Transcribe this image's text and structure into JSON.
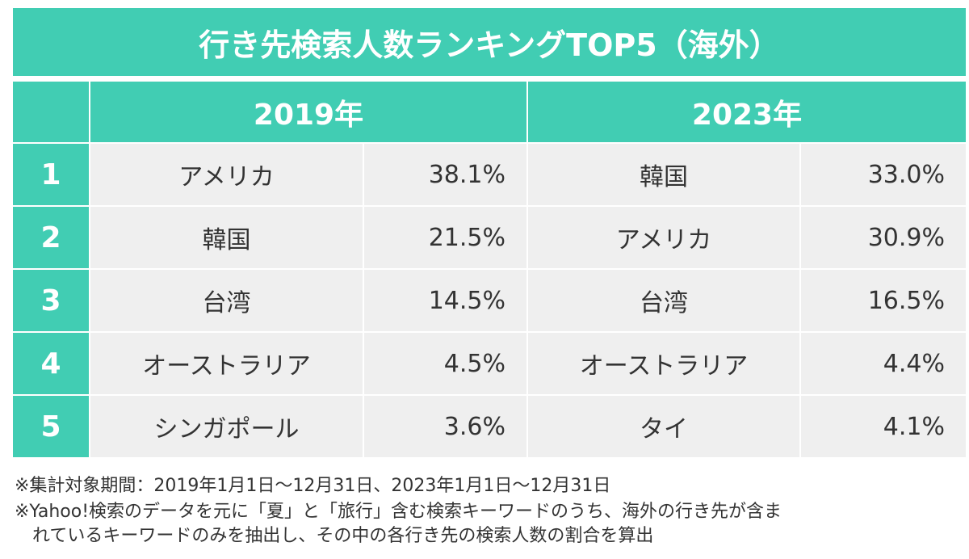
{
  "title": "行き先検索人数ランキングTOP5（海外）",
  "chart_data": {
    "type": "table",
    "title": "行き先検索人数ランキングTOP5（海外）",
    "years": [
      "2019年",
      "2023年"
    ],
    "ranks": [
      "1",
      "2",
      "3",
      "4",
      "5"
    ],
    "rows": [
      {
        "rank": "1",
        "dest_2019": "アメリカ",
        "pct_2019": "38.1%",
        "dest_2023": "韓国",
        "pct_2023": "33.0%"
      },
      {
        "rank": "2",
        "dest_2019": "韓国",
        "pct_2019": "21.5%",
        "dest_2023": "アメリカ",
        "pct_2023": "30.9%"
      },
      {
        "rank": "3",
        "dest_2019": "台湾",
        "pct_2019": "14.5%",
        "dest_2023": "台湾",
        "pct_2023": "16.5%"
      },
      {
        "rank": "4",
        "dest_2019": "オーストラリア",
        "pct_2019": "4.5%",
        "dest_2023": "オーストラリア",
        "pct_2023": "4.4%"
      },
      {
        "rank": "5",
        "dest_2019": "シンガポール",
        "pct_2019": "3.6%",
        "dest_2023": "タイ",
        "pct_2023": "4.1%"
      }
    ]
  },
  "notes": [
    "※集計対象期間：2019年1月1日～12月31日、2023年1月1日～12月31日",
    "※Yahoo!検索のデータを元に「夏」と「旅行」含む検索キーワードのうち、海外の行き先が含ま",
    "　れているキーワードのみを抽出し、その中の各行き先の検索人数の割合を算出"
  ],
  "colors": {
    "header": "#41cdb3",
    "cell": "#efefef",
    "text": "#333333"
  }
}
